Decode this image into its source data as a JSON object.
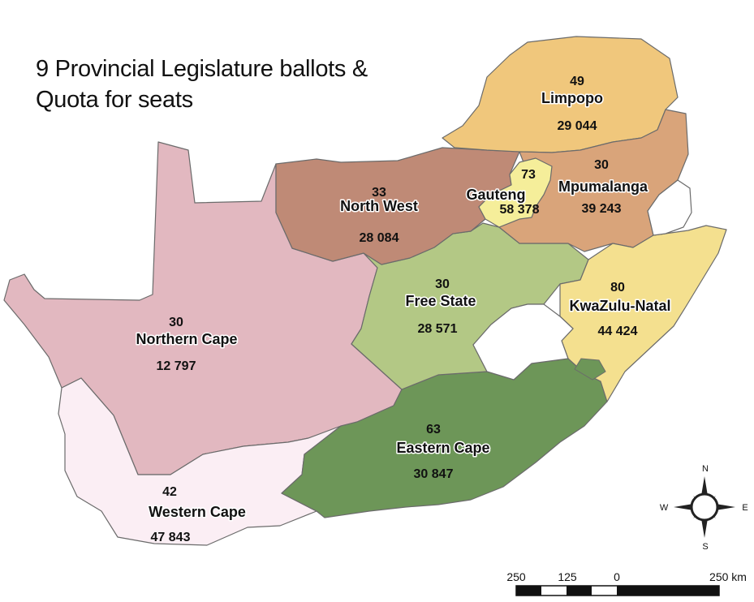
{
  "title": {
    "line1": "9 Provincial Legislature ballots &",
    "line2": "Quota for seats"
  },
  "provinces": [
    {
      "id": "limpopo",
      "name": "Limpopo",
      "seats": "49",
      "quota": "29 044",
      "color": "#f0c77c"
    },
    {
      "id": "mpumalanga",
      "name": "Mpumalanga",
      "seats": "30",
      "quota": "39 243",
      "color": "#d9a47a"
    },
    {
      "id": "gauteng",
      "name": "Gauteng",
      "seats": "73",
      "quota": "58 378",
      "color": "#f5ee9a"
    },
    {
      "id": "north-west",
      "name": "North West",
      "seats": "33",
      "quota": "28 084",
      "color": "#bf8a76"
    },
    {
      "id": "free-state",
      "name": "Free State",
      "seats": "30",
      "quota": "28 571",
      "color": "#b3c885"
    },
    {
      "id": "kwazulu-natal",
      "name": "KwaZulu-Natal",
      "seats": "80",
      "quota": "44 424",
      "color": "#f4e08f"
    },
    {
      "id": "northern-cape",
      "name": "Northern Cape",
      "seats": "30",
      "quota": "12 797",
      "color": "#e2b8c0"
    },
    {
      "id": "eastern-cape",
      "name": "Eastern Cape",
      "seats": "63",
      "quota": "30 847",
      "color": "#6d9658"
    },
    {
      "id": "western-cape",
      "name": "Western Cape",
      "seats": "42",
      "quota": "47 843",
      "color": "#fbeef4"
    }
  ],
  "compass": {
    "n": "N",
    "s": "S",
    "e": "E",
    "w": "W"
  },
  "scale_bar": {
    "labels": [
      "250",
      "125",
      "0",
      "250 km"
    ]
  }
}
